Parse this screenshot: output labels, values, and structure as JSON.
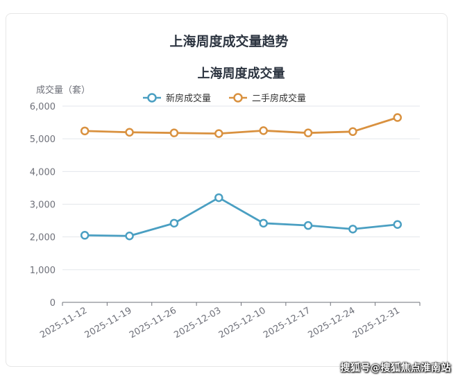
{
  "page": {
    "title": "上海周度成交量趋势",
    "watermark": "搜狐号@搜狐焦点淮南站"
  },
  "chart_data": {
    "type": "line",
    "title": "上海周度成交量",
    "ylabel": "成交量（套）",
    "xlabel": "",
    "categories": [
      "2025-11-12",
      "2025-11-19",
      "2025-11-26",
      "2025-12-03",
      "2025-12-10",
      "2025-12-17",
      "2025-12-24",
      "2025-12-31"
    ],
    "ylim": [
      0,
      6000
    ],
    "yticks": [
      0,
      1000,
      2000,
      3000,
      4000,
      5000,
      6000
    ],
    "ytick_labels": [
      "0",
      "1,000",
      "2,000",
      "3,000",
      "4,000",
      "5,000",
      "6,000"
    ],
    "grid": true,
    "legend": "top-center",
    "series": [
      {
        "name": "新房成交量",
        "color": "#4a9fc2",
        "values": [
          2050,
          2030,
          2420,
          3200,
          2420,
          2350,
          2240,
          2380
        ]
      },
      {
        "name": "二手房成交量",
        "color": "#d9913f",
        "values": [
          5240,
          5200,
          5180,
          5160,
          5250,
          5180,
          5220,
          5650
        ]
      }
    ]
  }
}
